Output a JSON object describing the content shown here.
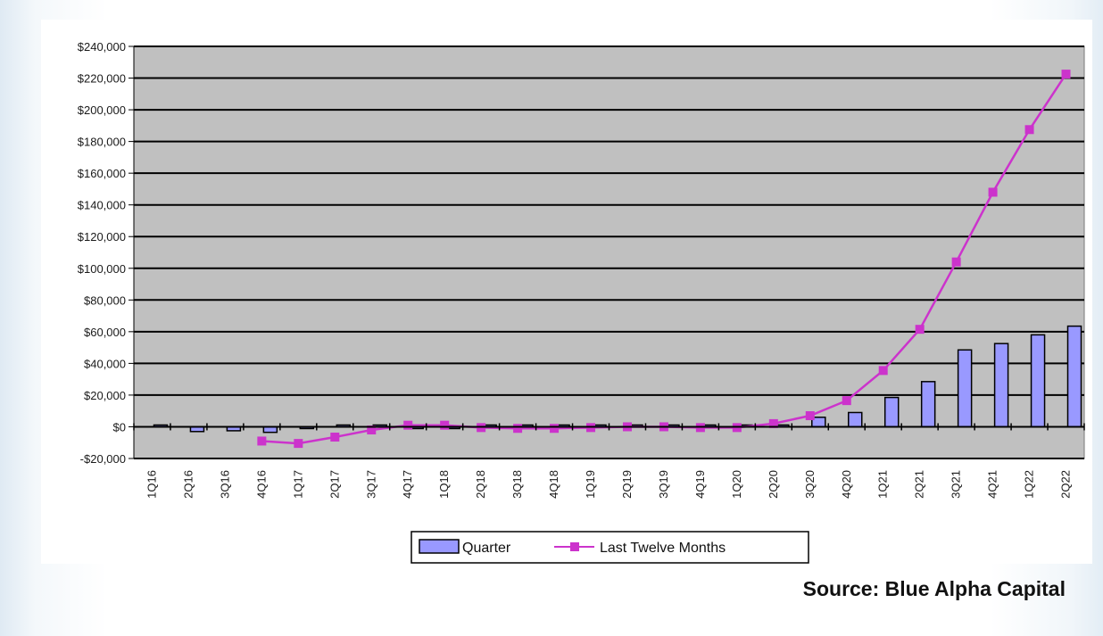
{
  "chart_data": {
    "type": "bar",
    "title": "",
    "xlabel": "",
    "ylabel": "",
    "ylim": [
      -20000,
      240000
    ],
    "yticks": [
      -20000,
      0,
      20000,
      40000,
      60000,
      80000,
      100000,
      120000,
      140000,
      160000,
      180000,
      200000,
      220000,
      240000
    ],
    "ytick_labels": [
      "-$20,000",
      "$0",
      "$20,000",
      "$40,000",
      "$60,000",
      "$80,000",
      "$100,000",
      "$120,000",
      "$140,000",
      "$160,000",
      "$180,000",
      "$200,000",
      "$220,000",
      "$240,000"
    ],
    "grid": "horizontal",
    "legend_position": "bottom-center",
    "categories": [
      "1Q16",
      "2Q16",
      "3Q16",
      "4Q16",
      "1Q17",
      "2Q17",
      "3Q17",
      "4Q17",
      "1Q18",
      "2Q18",
      "3Q18",
      "4Q18",
      "1Q19",
      "2Q19",
      "3Q19",
      "4Q19",
      "1Q20",
      "2Q20",
      "3Q20",
      "4Q20",
      "1Q21",
      "2Q21",
      "3Q21",
      "4Q21",
      "1Q22",
      "2Q22"
    ],
    "series": [
      {
        "name": "Quarter",
        "type": "bar",
        "color": "#9999ff",
        "values": [
          500,
          -3000,
          -2500,
          -3500,
          -1000,
          1000,
          1000,
          -500,
          -500,
          0,
          0,
          0,
          0,
          0,
          0,
          0,
          0,
          1000,
          6000,
          9000,
          18500,
          28500,
          48500,
          52500,
          58000,
          63500
        ]
      },
      {
        "name": "Last Twelve Months",
        "type": "line",
        "color": "#cc33cc",
        "values": [
          null,
          null,
          null,
          -9000,
          -10500,
          -6500,
          -2000,
          1000,
          1000,
          -500,
          -1000,
          -1000,
          -500,
          0,
          0,
          -500,
          -500,
          2000,
          7000,
          16500,
          35500,
          61500,
          104000,
          148000,
          187500,
          222500
        ]
      }
    ]
  },
  "source": "Source: Blue Alpha Capital",
  "colors": {
    "plot_background": "#c0c0c0",
    "gridline": "#000000",
    "bar_fill": "#9999ff",
    "bar_stroke": "#000000",
    "line": "#cc33cc"
  }
}
